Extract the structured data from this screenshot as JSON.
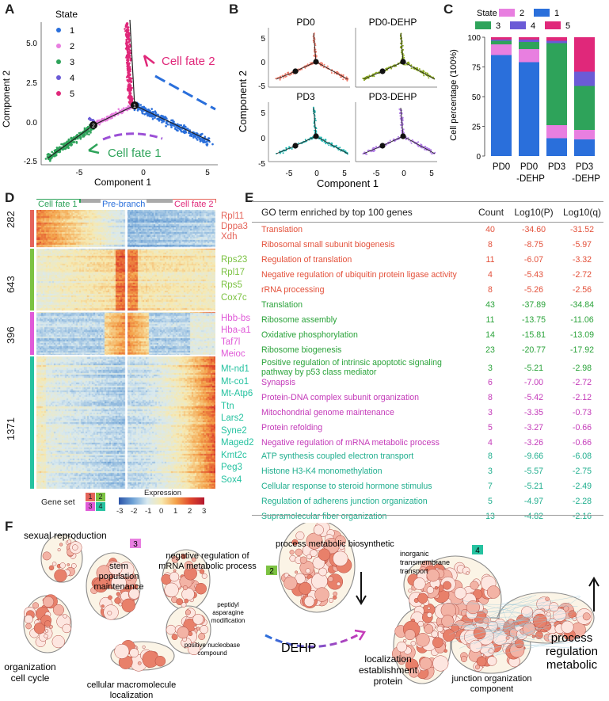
{
  "panels": {
    "a": "A",
    "b": "B",
    "c": "C",
    "d": "D",
    "e": "E",
    "f": "F"
  },
  "colors": {
    "s1": "#2a6fdb",
    "s2": "#e87fe0",
    "s3": "#2ea35a",
    "s4": "#6b5bd6",
    "s5": "#e0287a",
    "pd0": "#ee7b6a",
    "pd0dehp": "#8aaa1e",
    "pd3": "#22b6b0",
    "pd3dehp": "#b07ae6",
    "gs1": "#e5645a",
    "gs2": "#7cc242",
    "gs3": "#e05ad8",
    "gs4": "#25c2a0",
    "go_red": "#e3503a",
    "go_green": "#2aa33a",
    "go_magenta": "#c43ab9",
    "go_teal": "#1fae8e"
  },
  "panel_a": {
    "legend_title": "State",
    "legend_items": [
      "1",
      "2",
      "3",
      "4",
      "5"
    ],
    "xlabel": "Component 1",
    "ylabel": "Component 2",
    "xticks": [
      "-5",
      "0",
      "5"
    ],
    "yticks": [
      "5.0",
      "2.5",
      "0.0",
      "-2.5"
    ],
    "fate1_label": "Cell fate 1",
    "fate2_label": "Cell fate 2",
    "node1": "1",
    "node2": "2"
  },
  "panel_b": {
    "titles": [
      "PD0",
      "PD0-DEHP",
      "PD3",
      "PD3-DEHP"
    ],
    "xlabel": "Component 1",
    "ylabel": "Component 2",
    "xticks": [
      "-5",
      "0",
      "5"
    ],
    "yticks": [
      "5",
      "0",
      "-5"
    ],
    "node1": "1",
    "node2": "2"
  },
  "chart_data": {
    "type": "bar",
    "stacked": true,
    "categories": [
      "PD0",
      "PD0\n-DEHP",
      "PD3",
      "PD3\n-DEHP"
    ],
    "category_line1": [
      "PD0",
      "PD0",
      "PD3",
      "PD3"
    ],
    "category_line2": [
      "",
      "-DEHP",
      "",
      "-DEHP"
    ],
    "ylabel": "Cell percentage (100%)",
    "ylim": [
      0,
      100
    ],
    "yticks": [
      "0",
      "25",
      "50",
      "75",
      "100"
    ],
    "legend_title": "State",
    "legend_items": [
      "2",
      "1",
      "3",
      "4",
      "5"
    ],
    "series": [
      {
        "name": "1",
        "values": [
          85,
          79,
          15,
          14
        ]
      },
      {
        "name": "2",
        "values": [
          9,
          11,
          11,
          8
        ]
      },
      {
        "name": "3",
        "values": [
          3,
          6,
          69,
          37
        ]
      },
      {
        "name": "4",
        "values": [
          1,
          2,
          2,
          12
        ]
      },
      {
        "name": "5",
        "values": [
          2,
          2,
          3,
          29
        ]
      }
    ]
  },
  "panel_d": {
    "header_fate1": "Cell fate 1",
    "header_pre": "Pre-branch",
    "header_fate2": "Cell fate 2",
    "cluster_sizes": [
      "282",
      "643",
      "396",
      "1371"
    ],
    "genes1": [
      "Rpl11",
      "Dppa3",
      "Xdh"
    ],
    "genes2": [
      "Rps23",
      "Rpl17",
      "Rps5",
      "Cox7c"
    ],
    "genes3": [
      "Hbb-bs",
      "Hba-a1",
      "Taf7l",
      "Meioc"
    ],
    "genes4": [
      "Mt-nd1",
      "Mt-co1",
      "Mt-Atp6",
      "Ttn",
      "Lars2",
      "Syne2",
      "Maged2",
      "Kmt2c",
      "Peg3",
      "Sox4"
    ],
    "gene_set_label": "Gene set",
    "gene_set_ids": [
      "1",
      "2",
      "3",
      "4"
    ],
    "expression_label": "Expression",
    "expression_ticks": [
      "-3",
      "-2",
      "-1",
      "0",
      "1",
      "2",
      "3"
    ]
  },
  "panel_e": {
    "headers": {
      "term": "GO term enriched by top 100 genes",
      "count": "Count",
      "p": "Log10(P)",
      "q": "Log10(q)"
    },
    "rows": [
      {
        "term": "Translation",
        "count": "40",
        "p": "-34.60",
        "q": "-31.52",
        "set": "1"
      },
      {
        "term": "Ribosomal small subunit biogenesis",
        "count": "8",
        "p": "-8.75",
        "q": "-5.97",
        "set": "1"
      },
      {
        "term": "Regulation of translation",
        "count": "11",
        "p": "-6.07",
        "q": "-3.32",
        "set": "1"
      },
      {
        "term": "Negative regulation of ubiquitin protein ligase activity",
        "count": "4",
        "p": "-5.43",
        "q": "-2.72",
        "set": "1"
      },
      {
        "term": "rRNA processing",
        "count": "8",
        "p": "-5.26",
        "q": "-2.56",
        "set": "1"
      },
      {
        "term": "Translation",
        "count": "43",
        "p": "-37.89",
        "q": "-34.84",
        "set": "2"
      },
      {
        "term": "Ribosome assembly",
        "count": "11",
        "p": "-13.75",
        "q": "-11.06",
        "set": "2"
      },
      {
        "term": "Oxidative phosphorylation",
        "count": "14",
        "p": "-15.81",
        "q": "-13.09",
        "set": "2"
      },
      {
        "term": "Ribosome biogenesis",
        "count": "23",
        "p": "-20.77",
        "q": "-17.92",
        "set": "2"
      },
      {
        "term": "Positive regulation of intrinsic apoptotic signaling pathway by p53 class mediator",
        "count": "3",
        "p": "-5.21",
        "q": "-2.98",
        "set": "2"
      },
      {
        "term": "Synapsis",
        "count": "6",
        "p": "-7.00",
        "q": "-2.72",
        "set": "3"
      },
      {
        "term": "Protein-DNA complex subunit organization",
        "count": "8",
        "p": "-5.42",
        "q": "-2.12",
        "set": "3"
      },
      {
        "term": "Mitochondrial genome maintenance",
        "count": "3",
        "p": "-3.35",
        "q": "-0.73",
        "set": "3"
      },
      {
        "term": "Protein refolding",
        "count": "5",
        "p": "-3.27",
        "q": "-0.66",
        "set": "3"
      },
      {
        "term": "Negative regulation of mRNA metabolic process",
        "count": "4",
        "p": "-3.26",
        "q": "-0.66",
        "set": "3"
      },
      {
        "term": "ATP synthesis coupled electron transport",
        "count": "8",
        "p": "-9.66",
        "q": "-6.08",
        "set": "4"
      },
      {
        "term": "Histone H3-K4 monomethylation",
        "count": "3",
        "p": "-5.57",
        "q": "-2.75",
        "set": "4"
      },
      {
        "term": "Cellular response to steroid hormone stimulus",
        "count": "7",
        "p": "-5.21",
        "q": "-2.49",
        "set": "4"
      },
      {
        "term": "Regulation of adherens junction organization",
        "count": "5",
        "p": "-4.97",
        "q": "-2.28",
        "set": "4"
      },
      {
        "term": "Supramolecular fiber organization",
        "count": "13",
        "p": "-4.82",
        "q": "-2.16",
        "set": "4"
      }
    ]
  },
  "panel_f": {
    "set3_badge": "3",
    "set2_badge": "2",
    "set4_badge": "4",
    "sexual_reproduction": "sexual reproduction",
    "stem_pop": "stem\npopulation\nmaintenance",
    "neg_reg": "negative regulation of\nmRNA metabolic process",
    "peptidyl": "peptidyl\nasparagine\nmodification",
    "pos_nucleobase": "positive nucleobase\ncompound",
    "org_cycle": "organization\ncell cycle",
    "cell_macro": "cellular macromolecule\nlocalization",
    "proc_metab_bio": "process metabolic biosynthetic",
    "dehp": "DEHP",
    "inorganic": "inorganic\ntransmembrane\ntransport",
    "process_reg": "process\nregulation\nmetabolic",
    "localization": "localization\nestablishment\nprotein",
    "junction": "junction organization\ncomponent"
  }
}
